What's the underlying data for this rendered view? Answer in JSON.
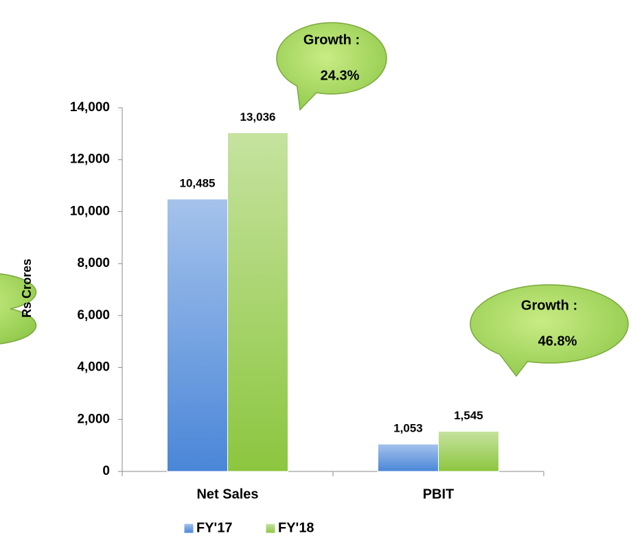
{
  "chart_data": {
    "type": "bar",
    "y_label": "Rs Crores",
    "categories": [
      "Net Sales",
      "PBIT"
    ],
    "series": [
      {
        "name": "FY'17",
        "color": "#4a86d8",
        "values": [
          10485,
          1053
        ],
        "value_labels": [
          "10,485",
          "1,053"
        ]
      },
      {
        "name": "FY'18",
        "color": "#8cc63f",
        "values": [
          13036,
          1545
        ],
        "value_labels": [
          "13,036",
          "1,545"
        ]
      }
    ],
    "ylim": [
      0,
      14000
    ],
    "yticks": [
      0,
      {
        "value": 2000,
        "label": "2,000"
      },
      {
        "value": 4000,
        "label": "4,000"
      },
      {
        "value": 6000,
        "label": "6,000"
      },
      {
        "value": 8000,
        "label": "8,000"
      },
      {
        "value": 10000,
        "label": "10,000"
      },
      {
        "value": 12000,
        "label": "12,000"
      },
      {
        "value": 14000,
        "label": "14,000"
      }
    ],
    "annotations": [
      {
        "lines": [
          "Growth :",
          "24.3%"
        ]
      },
      {
        "lines": [
          "Growth :",
          "46.8%"
        ]
      }
    ],
    "legend": "bottom"
  }
}
